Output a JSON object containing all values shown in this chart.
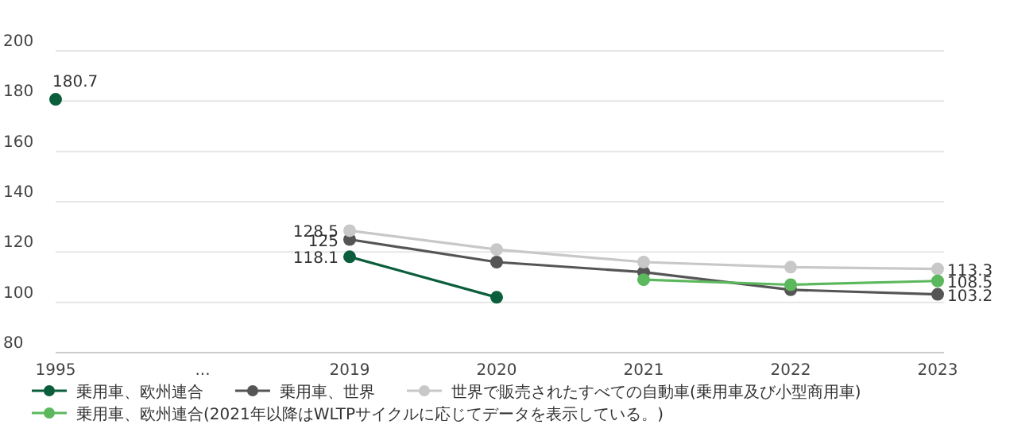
{
  "chart_data": {
    "type": "line",
    "categories": [
      "1995",
      "...",
      "2019",
      "2020",
      "2021",
      "2022",
      "2023"
    ],
    "ylim": [
      80,
      200
    ],
    "yticks": [
      80,
      100,
      120,
      140,
      160,
      180,
      200
    ],
    "grid": "y",
    "marker": "circle",
    "line_style": "solid",
    "legend": "bottom",
    "series": [
      {
        "name": "乗用車、欧州連合",
        "color": "#0b5e3c",
        "values": [
          180.7,
          null,
          118.1,
          102,
          null,
          null,
          null
        ],
        "value_labels": [
          "180.7",
          null,
          "118.1",
          null,
          null,
          null,
          null
        ]
      },
      {
        "name": "乗用車、世界",
        "color": "#555555",
        "values": [
          null,
          null,
          125,
          116,
          112,
          105,
          103.2
        ],
        "value_labels": [
          null,
          null,
          "125",
          null,
          null,
          null,
          "103.2"
        ]
      },
      {
        "name": "世界で販売されたすべての自動車(乗用車及び小型商用車)",
        "color": "#c8c8c8",
        "values": [
          null,
          null,
          128.5,
          121,
          116,
          114,
          113.3
        ],
        "value_labels": [
          null,
          null,
          "128.5",
          null,
          null,
          null,
          "113.3"
        ]
      },
      {
        "name": "乗用車、欧州連合(2021年以降はWLTPサイクルに応じてデータを表示している。)",
        "color": "#5cb85c",
        "values": [
          null,
          null,
          null,
          null,
          109,
          107,
          108.5
        ],
        "value_labels": [
          null,
          null,
          null,
          null,
          null,
          null,
          "108.5"
        ]
      }
    ]
  }
}
